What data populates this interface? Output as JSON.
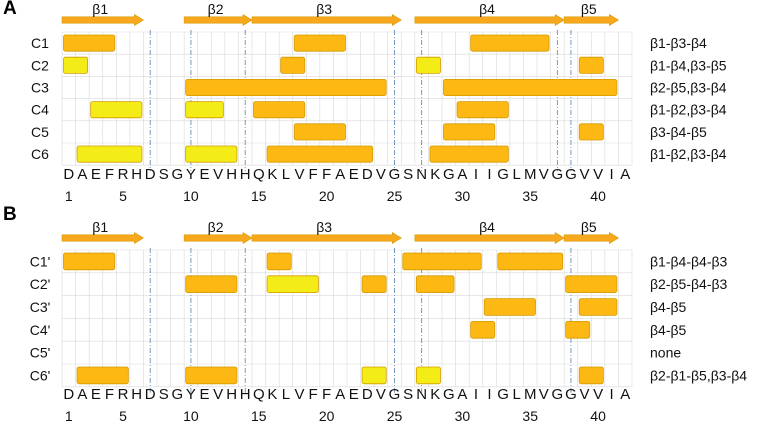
{
  "colors": {
    "orange": "#FDB814",
    "yellow": "#F3EC17",
    "stroke": "#D49A00",
    "arrow": "#F8A81C",
    "grid": "#D9D9D9",
    "dash": "#6A8FB8"
  },
  "sequence": [
    "D",
    "A",
    "E",
    "F",
    "R",
    "H",
    "D",
    "S",
    "G",
    "Y",
    "E",
    "V",
    "H",
    "H",
    "Q",
    "K",
    "L",
    "V",
    "F",
    "F",
    "A",
    "E",
    "D",
    "V",
    "G",
    "S",
    "N",
    "K",
    "G",
    "A",
    "I",
    "I",
    "G",
    "L",
    "M",
    "V",
    "G",
    "G",
    "V",
    "V",
    "I",
    "A"
  ],
  "ticks": [
    1,
    5,
    10,
    15,
    20,
    25,
    30,
    35,
    40
  ],
  "panels": [
    {
      "letter": "A",
      "strands": [
        {
          "label": "β1",
          "start": 1,
          "end": 6
        },
        {
          "label": "β2",
          "start": 10,
          "end": 14
        },
        {
          "label": "β3",
          "start": 15,
          "end": 25
        },
        {
          "label": "β4",
          "start": 27,
          "end": 37
        },
        {
          "label": "β5",
          "start": 38,
          "end": 41
        }
      ],
      "dividers": [
        6.5,
        9.5,
        13.5,
        24.5,
        26.5,
        36.5,
        37.5
      ],
      "rows": [
        {
          "label": "C1",
          "pattern": "β1-β3-β4",
          "bars": [
            {
              "s": 1,
              "e": 4,
              "c": "orange"
            },
            {
              "s": 18,
              "e": 21,
              "c": "orange"
            },
            {
              "s": 31,
              "e": 36,
              "c": "orange"
            }
          ]
        },
        {
          "label": "C2",
          "pattern": "β1-β4,β3-β5",
          "bars": [
            {
              "s": 1,
              "e": 2,
              "c": "yellow"
            },
            {
              "s": 17,
              "e": 18,
              "c": "orange"
            },
            {
              "s": 27,
              "e": 28,
              "c": "yellow"
            },
            {
              "s": 39,
              "e": 40,
              "c": "orange"
            }
          ]
        },
        {
          "label": "C3",
          "pattern": "β2-β5,β3-β4",
          "bars": [
            {
              "s": 10,
              "e": 24,
              "c": "orange"
            },
            {
              "s": 29,
              "e": 41,
              "c": "orange"
            }
          ]
        },
        {
          "label": "C4",
          "pattern": "β1-β2,β3-β4",
          "bars": [
            {
              "s": 3,
              "e": 6,
              "c": "yellow"
            },
            {
              "s": 10,
              "e": 12,
              "c": "yellow"
            },
            {
              "s": 15,
              "e": 18,
              "c": "orange"
            },
            {
              "s": 30,
              "e": 33,
              "c": "orange"
            }
          ]
        },
        {
          "label": "C5",
          "pattern": "β3-β4-β5",
          "bars": [
            {
              "s": 18,
              "e": 21,
              "c": "orange"
            },
            {
              "s": 29,
              "e": 32,
              "c": "orange"
            },
            {
              "s": 39,
              "e": 40,
              "c": "orange"
            }
          ]
        },
        {
          "label": "C6",
          "pattern": "β1-β2,β3-β4",
          "bars": [
            {
              "s": 2,
              "e": 6,
              "c": "yellow"
            },
            {
              "s": 10,
              "e": 13,
              "c": "yellow"
            },
            {
              "s": 16,
              "e": 23,
              "c": "orange"
            },
            {
              "s": 28,
              "e": 33,
              "c": "orange"
            }
          ]
        }
      ]
    },
    {
      "letter": "B",
      "strands": [
        {
          "label": "β1",
          "start": 1,
          "end": 6
        },
        {
          "label": "β2",
          "start": 10,
          "end": 14
        },
        {
          "label": "β3",
          "start": 15,
          "end": 25
        },
        {
          "label": "β4",
          "start": 27,
          "end": 37
        },
        {
          "label": "β5",
          "start": 38,
          "end": 41
        }
      ],
      "dividers": [
        6.5,
        9.5,
        13.5,
        24.5,
        26.5,
        37.5
      ],
      "rows": [
        {
          "label": "C1'",
          "pattern": "β1-β4-β4-β3",
          "bars": [
            {
              "s": 1,
              "e": 4,
              "c": "orange"
            },
            {
              "s": 16,
              "e": 17,
              "c": "orange"
            },
            {
              "s": 26,
              "e": 31,
              "c": "orange"
            },
            {
              "s": 33,
              "e": 37,
              "c": "orange"
            }
          ]
        },
        {
          "label": "C2'",
          "pattern": "β2-β5-β4-β3",
          "bars": [
            {
              "s": 10,
              "e": 13,
              "c": "orange"
            },
            {
              "s": 16,
              "e": 19,
              "c": "yellow"
            },
            {
              "s": 23,
              "e": 24,
              "c": "orange"
            },
            {
              "s": 27,
              "e": 29,
              "c": "orange"
            },
            {
              "s": 38,
              "e": 41,
              "c": "orange"
            }
          ]
        },
        {
          "label": "C3'",
          "pattern": "β4-β5",
          "bars": [
            {
              "s": 32,
              "e": 35,
              "c": "orange"
            },
            {
              "s": 39,
              "e": 41,
              "c": "orange"
            }
          ]
        },
        {
          "label": "C4'",
          "pattern": "β4-β5",
          "bars": [
            {
              "s": 31,
              "e": 32,
              "c": "orange"
            },
            {
              "s": 38,
              "e": 39,
              "c": "orange"
            }
          ]
        },
        {
          "label": "C5'",
          "pattern": "none",
          "bars": []
        },
        {
          "label": "C6'",
          "pattern": "β2-β1-β5,β3-β4",
          "bars": [
            {
              "s": 2,
              "e": 5,
              "c": "orange"
            },
            {
              "s": 10,
              "e": 13,
              "c": "orange"
            },
            {
              "s": 23,
              "e": 24,
              "c": "yellow"
            },
            {
              "s": 27,
              "e": 28,
              "c": "yellow"
            },
            {
              "s": 39,
              "e": 40,
              "c": "orange"
            }
          ]
        }
      ]
    }
  ]
}
